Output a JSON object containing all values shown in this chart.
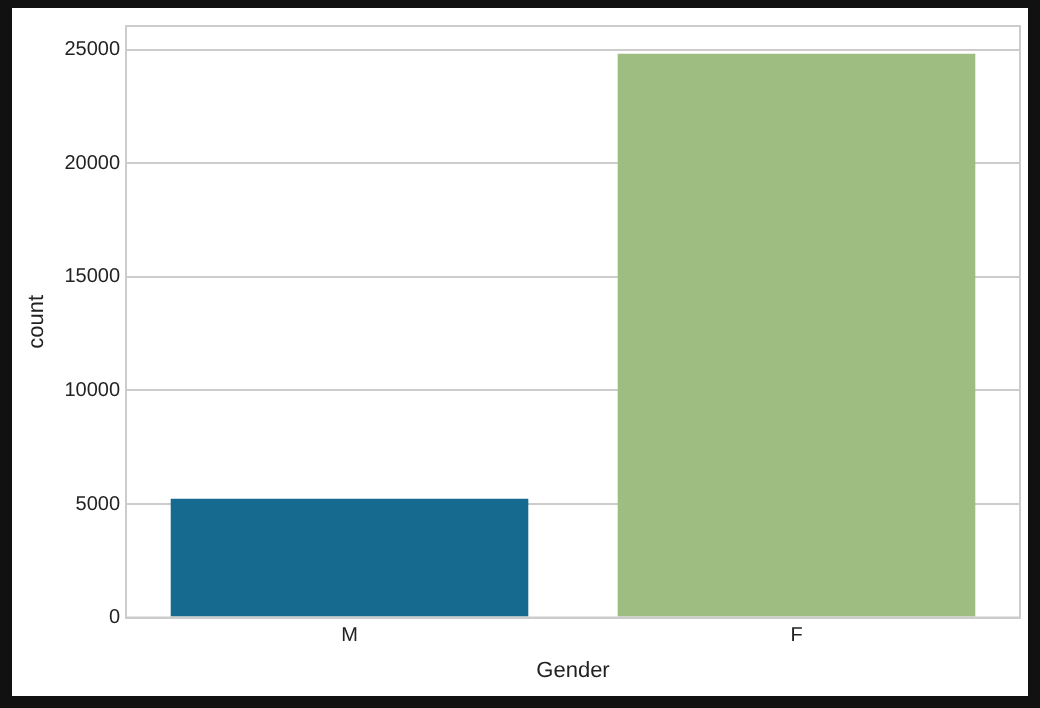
{
  "chart_data": {
    "type": "bar",
    "xlabel": "Gender",
    "ylabel": "count",
    "categories": [
      "M",
      "F"
    ],
    "values": [
      5230,
      24830
    ],
    "colors": [
      "#166a8f",
      "#9ebd80"
    ],
    "ylim": [
      0,
      26050
    ],
    "yticks": [
      0,
      5000,
      10000,
      15000,
      20000,
      25000
    ],
    "grid": "y",
    "legend": false
  }
}
